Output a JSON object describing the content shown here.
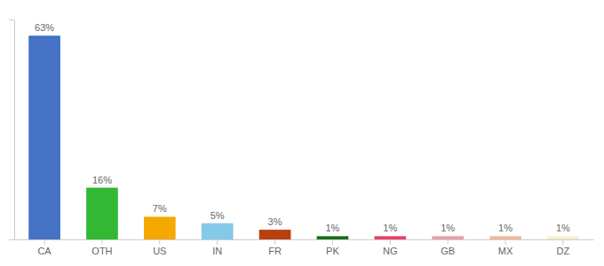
{
  "chart_data": {
    "type": "bar",
    "categories": [
      "CA",
      "OTH",
      "US",
      "IN",
      "FR",
      "PK",
      "NG",
      "GB",
      "MX",
      "DZ"
    ],
    "values": [
      63,
      16,
      7,
      5,
      3,
      1,
      1,
      1,
      1,
      1
    ],
    "value_labels": [
      "63%",
      "16%",
      "7%",
      "5%",
      "3%",
      "1%",
      "1%",
      "1%",
      "1%",
      "1%"
    ],
    "colors": [
      "#4472c4",
      "#33b833",
      "#f5a800",
      "#85c8e8",
      "#b84010",
      "#1a6e1a",
      "#e8406a",
      "#e8a0a8",
      "#f0b8a0",
      "#f5f0d0"
    ],
    "ylim": [
      0,
      68
    ],
    "data_labels": true,
    "tick_labels": "x",
    "grid": false
  }
}
